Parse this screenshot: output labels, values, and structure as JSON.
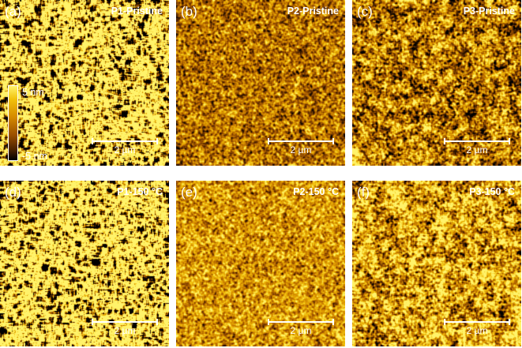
{
  "panels": [
    {
      "id": "a",
      "tag": "(a)",
      "title": "P1-Pristine",
      "scale_label": "2 µm",
      "texture": "worm",
      "brightness": 0.55,
      "grain": 3.2
    },
    {
      "id": "b",
      "tag": "(b)",
      "title": "P2-Pristine",
      "scale_label": "2 µm",
      "texture": "fine",
      "brightness": 0.52,
      "grain": 1.6
    },
    {
      "id": "c",
      "tag": "(c)",
      "title": "P3-Pristine",
      "scale_label": "2 µm",
      "texture": "coarse",
      "brightness": 0.62,
      "grain": 2.4
    },
    {
      "id": "d",
      "tag": "(d)",
      "title": "P1-150 °C",
      "scale_label": "2 µm",
      "texture": "worm",
      "brightness": 0.55,
      "grain": 3.2
    },
    {
      "id": "e",
      "tag": "(e)",
      "title": "P2-150 °C",
      "scale_label": "2 µm",
      "texture": "fine",
      "brightness": 0.52,
      "grain": 1.6
    },
    {
      "id": "f",
      "tag": "(f)",
      "title": "P3-150 °C",
      "scale_label": "2 µm",
      "texture": "coarse",
      "brightness": 0.64,
      "grain": 2.4
    }
  ],
  "colorbar": {
    "max_label": "5 nm",
    "min_label": "-5 nm",
    "colors": [
      "#fff36a",
      "#f2c10a",
      "#d58a00",
      "#9a4f00",
      "#4a2200",
      "#000000"
    ]
  }
}
